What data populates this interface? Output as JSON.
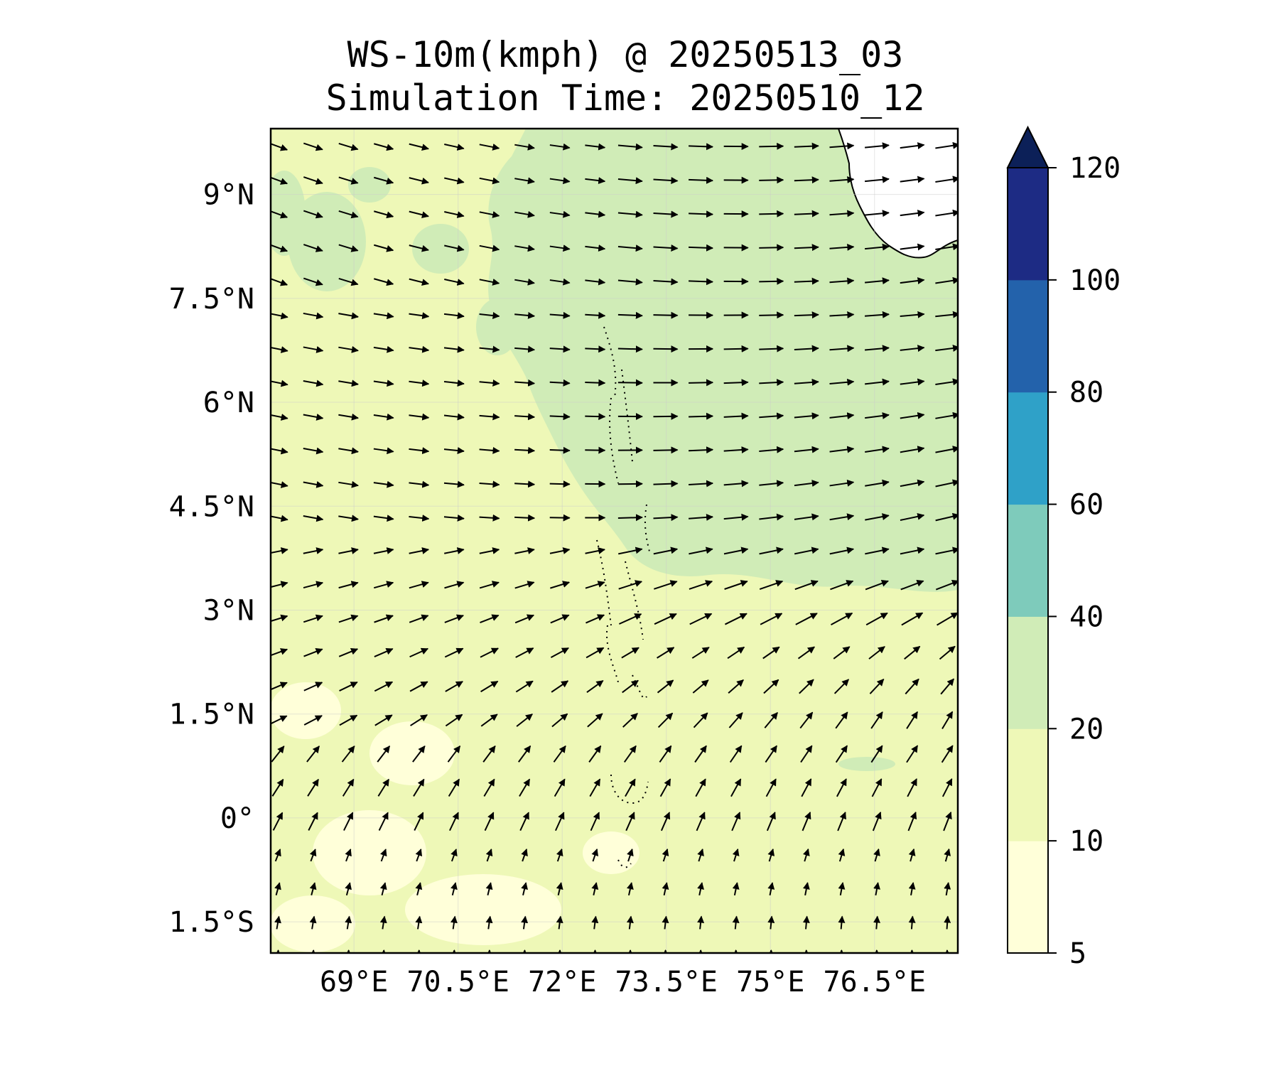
{
  "title": {
    "line1": "WS-10m(kmph) @ 20250513_03",
    "line2": "Simulation Time: 20250510_12"
  },
  "map": {
    "lon_range": [
      67.8,
      77.7
    ],
    "lat_range": [
      -1.95,
      9.95
    ],
    "lon_ticks": [
      {
        "value": 69.0,
        "label": "69°E"
      },
      {
        "value": 70.5,
        "label": "70.5°E"
      },
      {
        "value": 72.0,
        "label": "72°E"
      },
      {
        "value": 73.5,
        "label": "73.5°E"
      },
      {
        "value": 75.0,
        "label": "75°E"
      },
      {
        "value": 76.5,
        "label": "76.5°E"
      }
    ],
    "lat_ticks": [
      {
        "value": 9.0,
        "label": "9°N"
      },
      {
        "value": 7.5,
        "label": "7.5°N"
      },
      {
        "value": 6.0,
        "label": "6°N"
      },
      {
        "value": 4.5,
        "label": "4.5°N"
      },
      {
        "value": 3.0,
        "label": "3°N"
      },
      {
        "value": 1.5,
        "label": "1.5°N"
      },
      {
        "value": 0.0,
        "label": "0°"
      },
      {
        "value": -1.5,
        "label": "1.5°S"
      }
    ],
    "gridlines": true,
    "colors": {
      "band_5_10": "#ffffd9",
      "band_10_20": "#eef8b7",
      "band_20_40": "#d0ecb7",
      "land": "#ffffff",
      "coast": "#000000",
      "arrow": "#000000"
    }
  },
  "colorbar": {
    "levels": [
      5,
      10,
      20,
      40,
      60,
      80,
      100,
      120
    ],
    "labels": [
      "5",
      "10",
      "20",
      "40",
      "60",
      "80",
      "100",
      "120"
    ],
    "colors": [
      "#ffffd9",
      "#eef8b7",
      "#d0ecb7",
      "#7ecbbb",
      "#2fa1c8",
      "#2362ab",
      "#1d2b84"
    ],
    "extend_color": "#0c2058",
    "extend": "max"
  }
}
